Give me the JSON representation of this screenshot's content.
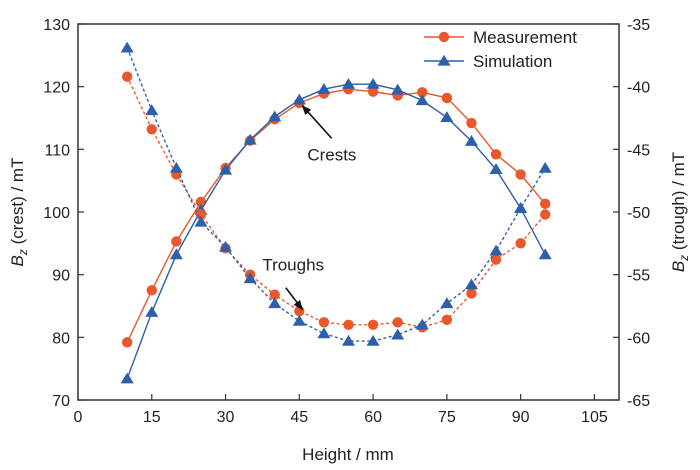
{
  "chart_data": {
    "type": "line",
    "xlabel": "Height / mm",
    "ylabel_left": {
      "prefix": "B",
      "sub": "z",
      "suffix": " (crest) / mT"
    },
    "ylabel_right": {
      "prefix": "B",
      "sub": "z",
      "suffix": " (trough) / mT"
    },
    "xlim": [
      0,
      110
    ],
    "xticks": [
      0,
      15,
      30,
      45,
      60,
      75,
      90,
      105
    ],
    "ylim_left": [
      70,
      130
    ],
    "yticks_left": [
      70,
      80,
      90,
      100,
      110,
      120,
      130
    ],
    "ylim_right": [
      -65,
      -35
    ],
    "yticks_right": [
      -65,
      -60,
      -55,
      -50,
      -45,
      -40,
      -35
    ],
    "grid": false,
    "legend_position": "top-right",
    "legend": [
      {
        "label": "Measurement",
        "color": "#E8582A",
        "marker": "circle"
      },
      {
        "label": "Simulation",
        "color": "#2E5FAA",
        "marker": "triangle"
      }
    ],
    "annotations": [
      {
        "text": "Crests",
        "target_x": 45,
        "target_y_left": 117.6
      },
      {
        "text": "Troughs",
        "target_x": 45,
        "target_y_left": 83.8
      }
    ],
    "x": [
      10,
      15,
      20,
      25,
      30,
      35,
      40,
      45,
      50,
      55,
      60,
      65,
      70,
      75,
      80,
      85,
      90,
      95
    ],
    "series": [
      {
        "name": "Measurement",
        "group": "crest",
        "axis": "left",
        "style": "solid",
        "color": "#E8582A",
        "marker": "circle",
        "values": [
          79.2,
          87.5,
          95.3,
          101.6,
          107.0,
          111.4,
          114.8,
          117.4,
          118.9,
          119.6,
          119.2,
          118.6,
          119.1,
          118.2,
          114.2,
          109.2,
          106.0,
          101.3
        ]
      },
      {
        "name": "Simulation",
        "group": "crest",
        "axis": "left",
        "style": "solid",
        "color": "#2E5FAA",
        "marker": "triangle",
        "values": [
          73.4,
          84.0,
          93.2,
          100.3,
          106.7,
          111.5,
          115.2,
          117.9,
          119.6,
          120.4,
          120.4,
          119.5,
          117.8,
          115.1,
          111.3,
          106.8,
          100.6,
          93.2
        ]
      },
      {
        "name": "Measurement",
        "group": "trough",
        "axis": "right",
        "style": "dashed",
        "color": "#E8582A",
        "marker": "circle",
        "values": [
          -39.2,
          -43.4,
          -47.0,
          -50.2,
          -52.9,
          -55.0,
          -56.6,
          -57.9,
          -58.8,
          -59.0,
          -59.0,
          -58.8,
          -59.2,
          -58.6,
          -56.5,
          -53.8,
          -52.5,
          -50.2
        ]
      },
      {
        "name": "Simulation",
        "group": "trough",
        "axis": "right",
        "style": "dashed",
        "color": "#2E5FAA",
        "marker": "triangle",
        "values": [
          -36.9,
          -41.9,
          -46.5,
          -50.8,
          -52.8,
          -55.3,
          -57.3,
          -58.7,
          -59.7,
          -60.3,
          -60.3,
          -59.8,
          -59.0,
          -57.3,
          -55.8,
          -53.1,
          -49.7,
          -46.5
        ]
      }
    ]
  }
}
